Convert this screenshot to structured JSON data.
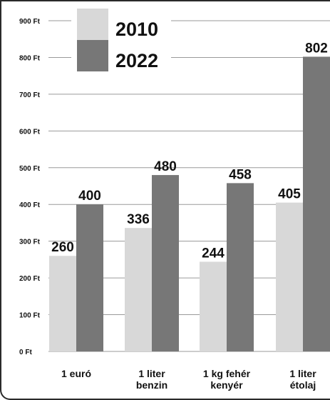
{
  "chart_data": {
    "type": "bar",
    "title": "",
    "xlabel": "",
    "ylabel": "",
    "ylim": [
      0,
      900
    ],
    "y_ticks": [
      {
        "value": 0,
        "label": "0 Ft"
      },
      {
        "value": 100,
        "label": "100 Ft"
      },
      {
        "value": 200,
        "label": "200 Ft"
      },
      {
        "value": 300,
        "label": "300 Ft"
      },
      {
        "value": 400,
        "label": "400 Ft"
      },
      {
        "value": 500,
        "label": "500 Ft"
      },
      {
        "value": 600,
        "label": "600 Ft"
      },
      {
        "value": 700,
        "label": "700 Ft"
      },
      {
        "value": 800,
        "label": "800 Ft"
      },
      {
        "value": 900,
        "label": "900 Ft"
      }
    ],
    "categories": [
      [
        "1 euró"
      ],
      [
        "1 liter",
        "benzin"
      ],
      [
        "1 kg fehér",
        "kenyér"
      ],
      [
        "1 liter",
        "étolaj"
      ]
    ],
    "series": [
      {
        "name": "2010",
        "color": "#d8d8d8",
        "values": [
          260,
          336,
          244,
          405
        ]
      },
      {
        "name": "2022",
        "color": "#777777",
        "values": [
          400,
          480,
          458,
          802
        ]
      }
    ],
    "grid": true,
    "legend_position": "top-left"
  }
}
